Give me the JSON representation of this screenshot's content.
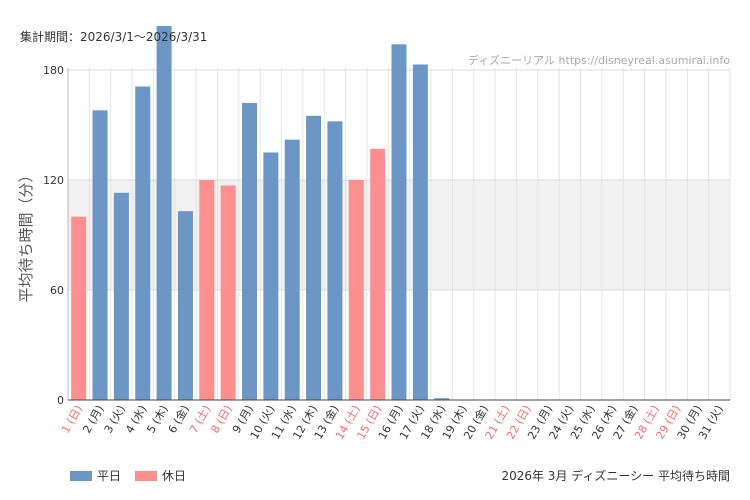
{
  "header": {
    "period_label": "集計期間：2026/3/1〜2026/3/31",
    "credit": "ディズニーリアル https://disneyreal.asumirai.info"
  },
  "legend": [
    {
      "label": "平日",
      "color": "#6a97c6"
    },
    {
      "label": "休日",
      "color": "#ff8f8f"
    }
  ],
  "caption": "2026年 3月 ディズニーシー 平均待ち時間",
  "colors": {
    "weekday_bar": "#6a97c6",
    "holiday_bar": "#ff8f8f",
    "holiday_label": "#ff6a6a",
    "band": "#f2f2f2"
  },
  "chart_data": {
    "type": "bar",
    "title": "2026年 3月 ディズニーシー 平均待ち時間",
    "ylabel": "平均待ち時間（分）",
    "xlabel": "",
    "ylim": [
      0,
      180
    ],
    "yticks": [
      0,
      60,
      120,
      180
    ],
    "shaded_band": [
      60,
      120
    ],
    "categories": [
      "1 (日)",
      "2 (月)",
      "3 (火)",
      "4 (水)",
      "5 (木)",
      "6 (金)",
      "7 (土)",
      "8 (日)",
      "9 (月)",
      "10 (火)",
      "11 (水)",
      "12 (木)",
      "13 (金)",
      "14 (土)",
      "15 (日)",
      "16 (月)",
      "17 (火)",
      "18 (水)",
      "19 (木)",
      "20 (金)",
      "21 (土)",
      "22 (日)",
      "23 (月)",
      "24 (火)",
      "25 (水)",
      "26 (木)",
      "27 (金)",
      "28 (土)",
      "29 (日)",
      "30 (月)",
      "31 (火)"
    ],
    "values": [
      100,
      158,
      113,
      171,
      204,
      103,
      120,
      117,
      162,
      135,
      142,
      155,
      152,
      120,
      137,
      194,
      183,
      1,
      0,
      0,
      0,
      0,
      0,
      0,
      0,
      0,
      0,
      0,
      0,
      0,
      0
    ],
    "holiday": [
      true,
      false,
      false,
      false,
      false,
      false,
      true,
      true,
      false,
      false,
      false,
      false,
      false,
      true,
      true,
      false,
      false,
      false,
      false,
      false,
      true,
      true,
      false,
      false,
      false,
      false,
      false,
      true,
      true,
      false,
      false
    ],
    "series": [
      {
        "name": "平日"
      },
      {
        "name": "休日"
      }
    ]
  }
}
